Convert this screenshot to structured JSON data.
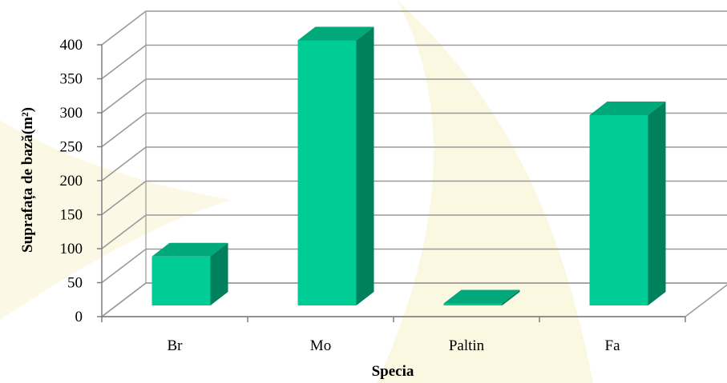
{
  "chart_data": {
    "type": "bar",
    "style": "3d-column",
    "categories": [
      "Br",
      "Mo",
      "Paltin",
      "Fa"
    ],
    "values": [
      72,
      390,
      3,
      280
    ],
    "xlabel": "Specia",
    "ylabel": "Suprafața de bază(m²)",
    "ylim": [
      0,
      400
    ],
    "ytick_step": 50,
    "yticks": [
      "0",
      "50",
      "100",
      "150",
      "200",
      "250",
      "300",
      "350",
      "400"
    ],
    "grid": true,
    "legend": "none",
    "colors": {
      "bar_front": "#00CC96",
      "bar_top": "#00A87A",
      "bar_side": "#00805C",
      "grid": "#999999",
      "axis": "#7f7f7f"
    }
  }
}
